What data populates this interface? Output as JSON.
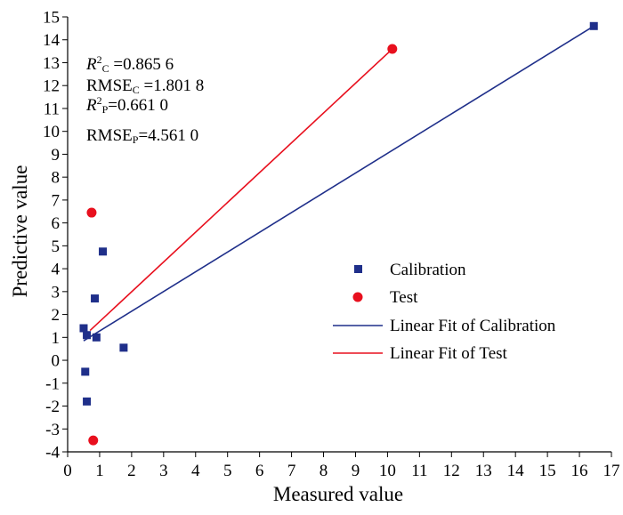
{
  "chart_data": {
    "type": "scatter",
    "xlabel": "Measured value",
    "ylabel": "Predictive value",
    "xlim": [
      0,
      17
    ],
    "ylim": [
      -4,
      15
    ],
    "x_ticks": [
      "0",
      "1",
      "2",
      "3",
      "4",
      "5",
      "6",
      "7",
      "8",
      "9",
      "10",
      "11",
      "12",
      "13",
      "14",
      "15",
      "16",
      "17"
    ],
    "y_ticks": [
      "-4",
      "-3",
      "-2",
      "-1",
      "0",
      "1",
      "2",
      "3",
      "4",
      "5",
      "6",
      "7",
      "8",
      "9",
      "10",
      "11",
      "12",
      "13",
      "14",
      "15"
    ],
    "series": [
      {
        "name": "Calibration",
        "marker": "square",
        "color": "#1f2f8a",
        "points": [
          {
            "x": 0.5,
            "y": 1.4
          },
          {
            "x": 0.6,
            "y": 1.1
          },
          {
            "x": 0.55,
            "y": -0.5
          },
          {
            "x": 0.6,
            "y": -1.8
          },
          {
            "x": 0.85,
            "y": 2.7
          },
          {
            "x": 0.9,
            "y": 1.0
          },
          {
            "x": 1.1,
            "y": 4.75
          },
          {
            "x": 1.75,
            "y": 0.55
          },
          {
            "x": 16.45,
            "y": 14.6
          }
        ]
      },
      {
        "name": "Test",
        "marker": "circle",
        "color": "#e8101e",
        "points": [
          {
            "x": 0.75,
            "y": 6.45
          },
          {
            "x": 0.8,
            "y": -3.5
          },
          {
            "x": 10.15,
            "y": 13.6
          }
        ]
      }
    ],
    "fits": [
      {
        "name": "Linear Fit of Calibration",
        "color": "#1f2f8a",
        "x": [
          0.5,
          16.45
        ],
        "y": [
          0.85,
          14.6
        ]
      },
      {
        "name": "Linear Fit of Test",
        "color": "#e8101e",
        "x": [
          0.7,
          10.15
        ],
        "y": [
          1.3,
          13.6
        ]
      }
    ],
    "annotations": {
      "r2c_label": "R",
      "r2c_sup": "2",
      "r2c_sub": "C",
      "r2c_value": " =0.865 6",
      "rmsec_label": "RMSE",
      "rmsec_sub": "C",
      "rmsec_value": " =1.801 8",
      "r2p_label": "R",
      "r2p_sup": "2",
      "r2p_sub": "P",
      "r2p_value": "=0.661 0",
      "rmsep_label": "RMSE",
      "rmsep_sub": "P",
      "rmsep_value": "=4.561 0"
    },
    "legend": {
      "position": "lower-right",
      "items": [
        "Calibration",
        "Test",
        "Linear Fit of Calibration",
        "Linear Fit of Test"
      ]
    },
    "grid": false
  }
}
